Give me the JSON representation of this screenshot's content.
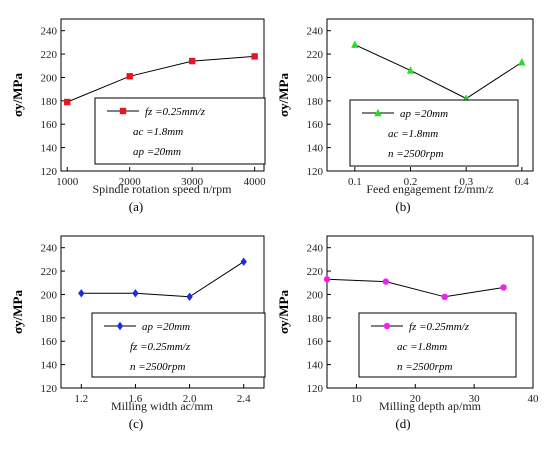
{
  "chart_data": [
    {
      "type": "line",
      "panel": "(a)",
      "xlabel": "Spindle rotation speed n/rpm",
      "ylabel": "σy/MPa",
      "xlim": [
        900,
        4150
      ],
      "ylim": [
        120,
        250
      ],
      "xticks": [
        1000,
        2000,
        3000,
        4000
      ],
      "yticks": [
        120,
        140,
        160,
        180,
        200,
        220,
        240
      ],
      "marker": "square",
      "color": "#e8141e",
      "x": [
        1000,
        2000,
        3000,
        4000
      ],
      "y": [
        179,
        201,
        214,
        218
      ],
      "legend": [
        "fz =0.25mm/z",
        "ac =1.8mm",
        "ap =20mm"
      ]
    },
    {
      "type": "line",
      "panel": "(b)",
      "xlabel": "Feed engagement fz/mm/z",
      "ylabel": "σy/MPa",
      "xlim": [
        0.05,
        0.42
      ],
      "ylim": [
        120,
        250
      ],
      "xticks": [
        0.1,
        0.2,
        0.3,
        0.4
      ],
      "yticks": [
        120,
        140,
        160,
        180,
        200,
        220,
        240
      ],
      "marker": "triangle",
      "color": "#22dd22",
      "x": [
        0.1,
        0.2,
        0.3,
        0.4
      ],
      "y": [
        228,
        206,
        182,
        213
      ],
      "legend": [
        "ap =20mm",
        "ac =1.8mm",
        "n =2500rpm"
      ]
    },
    {
      "type": "line",
      "panel": "(c)",
      "xlabel": "Milling width ac/mm",
      "ylabel": "σy/MPa",
      "xlim": [
        1.05,
        2.55
      ],
      "ylim": [
        120,
        250
      ],
      "xticks": [
        1.2,
        1.6,
        2.0,
        2.4
      ],
      "yticks": [
        120,
        140,
        160,
        180,
        200,
        220,
        240
      ],
      "marker": "diamond",
      "color": "#1a2ee0",
      "x": [
        1.2,
        1.6,
        2.0,
        2.4
      ],
      "y": [
        201,
        201,
        198,
        228
      ],
      "legend": [
        "ap =20mm",
        "fz =0.25mm/z",
        "n =2500rpm"
      ]
    },
    {
      "type": "line",
      "panel": "(d)",
      "xlabel": "Milling depth ap/mm",
      "ylabel": "σy/MPa",
      "xlim": [
        5,
        40
      ],
      "ylim": [
        120,
        250
      ],
      "xticks": [
        10,
        20,
        30,
        40
      ],
      "yticks": [
        120,
        140,
        160,
        180,
        200,
        220,
        240
      ],
      "marker": "circle",
      "color": "#ee22ee",
      "x": [
        5,
        15,
        25,
        35
      ],
      "y": [
        213,
        211,
        198,
        206
      ],
      "legend": [
        "fz =0.25mm/z",
        "ac =1.8mm",
        "n =2500rpm"
      ]
    }
  ]
}
